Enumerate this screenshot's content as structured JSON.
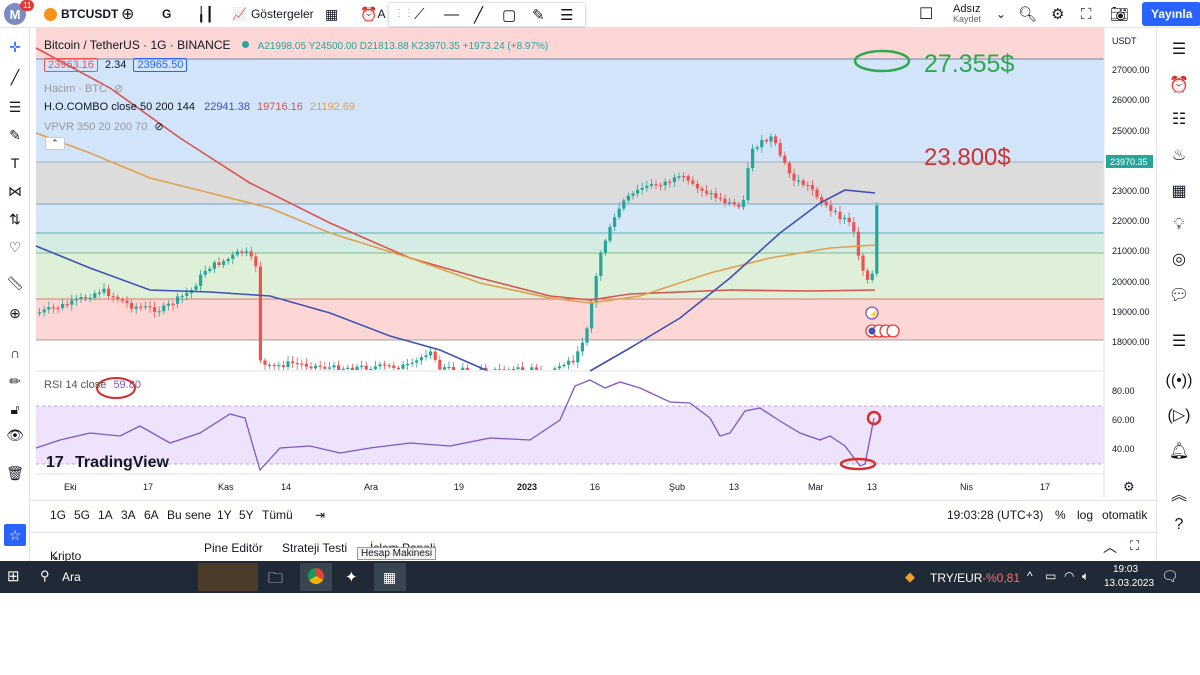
{
  "topbar": {
    "logo_letter": "M",
    "notif_count": "11",
    "symbol": "BTCUSDT",
    "interval": "G",
    "indicators_label": "Göstergeler",
    "alert_label": "A",
    "user_name": "Adsız",
    "user_status": "Kaydet",
    "publish_label": "Yayınla"
  },
  "legend": {
    "title": "Bitcoin / TetherUS · 1G · BINANCE",
    "ohlc": "A21998.05 Y24500.00 D21813.88 K23970.35 +1973.24 (+8.97%)",
    "bid": "23963.16",
    "spread": "2.34",
    "ask": "23965.50",
    "volume_label": "Hacim · BTC",
    "combo_label": "H.O.COMBO close 50 200 144",
    "combo_v1": "22941.38",
    "combo_v2": "19716.16",
    "combo_v3": "21192.69",
    "vpvr_label": "VPVR 350 20 200 70",
    "rsi_label": "RSI 14 close",
    "rsi_value": "59.80",
    "watermark": "TradingView"
  },
  "annotations": {
    "target_price": "27.355$",
    "current_price_note": "23.800$"
  },
  "price_axis": {
    "currency": "USDT",
    "ticks": [
      "27000.00",
      "26000.00",
      "25000.00",
      "24000.00",
      "23000.00",
      "22000.00",
      "21000.00",
      "20000.00",
      "19000.00",
      "18000.00"
    ],
    "last_price": "23970.35"
  },
  "rsi_axis": {
    "ticks": [
      "80.00",
      "60.00",
      "40.00"
    ]
  },
  "time_axis": {
    "ticks": [
      "Eki",
      "17",
      "Kas",
      "14",
      "Ara",
      "19",
      "2023",
      "16",
      "Şub",
      "13",
      "Mar",
      "13",
      "Nis",
      "17"
    ]
  },
  "periods": {
    "items": [
      "1G",
      "5G",
      "1A",
      "3A",
      "6A",
      "Bu sene",
      "1Y",
      "5Y",
      "Tümü"
    ],
    "clock": "19:03:28 (UTC+3)",
    "pct": "%",
    "log": "log",
    "auto": "otomatik"
  },
  "bottom_tabs": {
    "items": [
      "Kripto Çiftleri Takipçisi",
      "Pine Editör",
      "Strateji Testi",
      "İşlem Paneli"
    ],
    "tooltip": "Hesap Makinesi"
  },
  "taskbar": {
    "search": "Ara",
    "ticker": "TRY/EUR",
    "ticker_change": "-%0,81",
    "time": "19:03",
    "date": "13.03.2023"
  },
  "colors": {
    "up": "#26a69a",
    "down": "#ef5350",
    "ma_blue": "#3f51b5",
    "ma_red": "#d9534f",
    "ma_orange": "#e0a050",
    "rsi": "#7e57c2",
    "accent_blue": "#2962ff"
  }
}
